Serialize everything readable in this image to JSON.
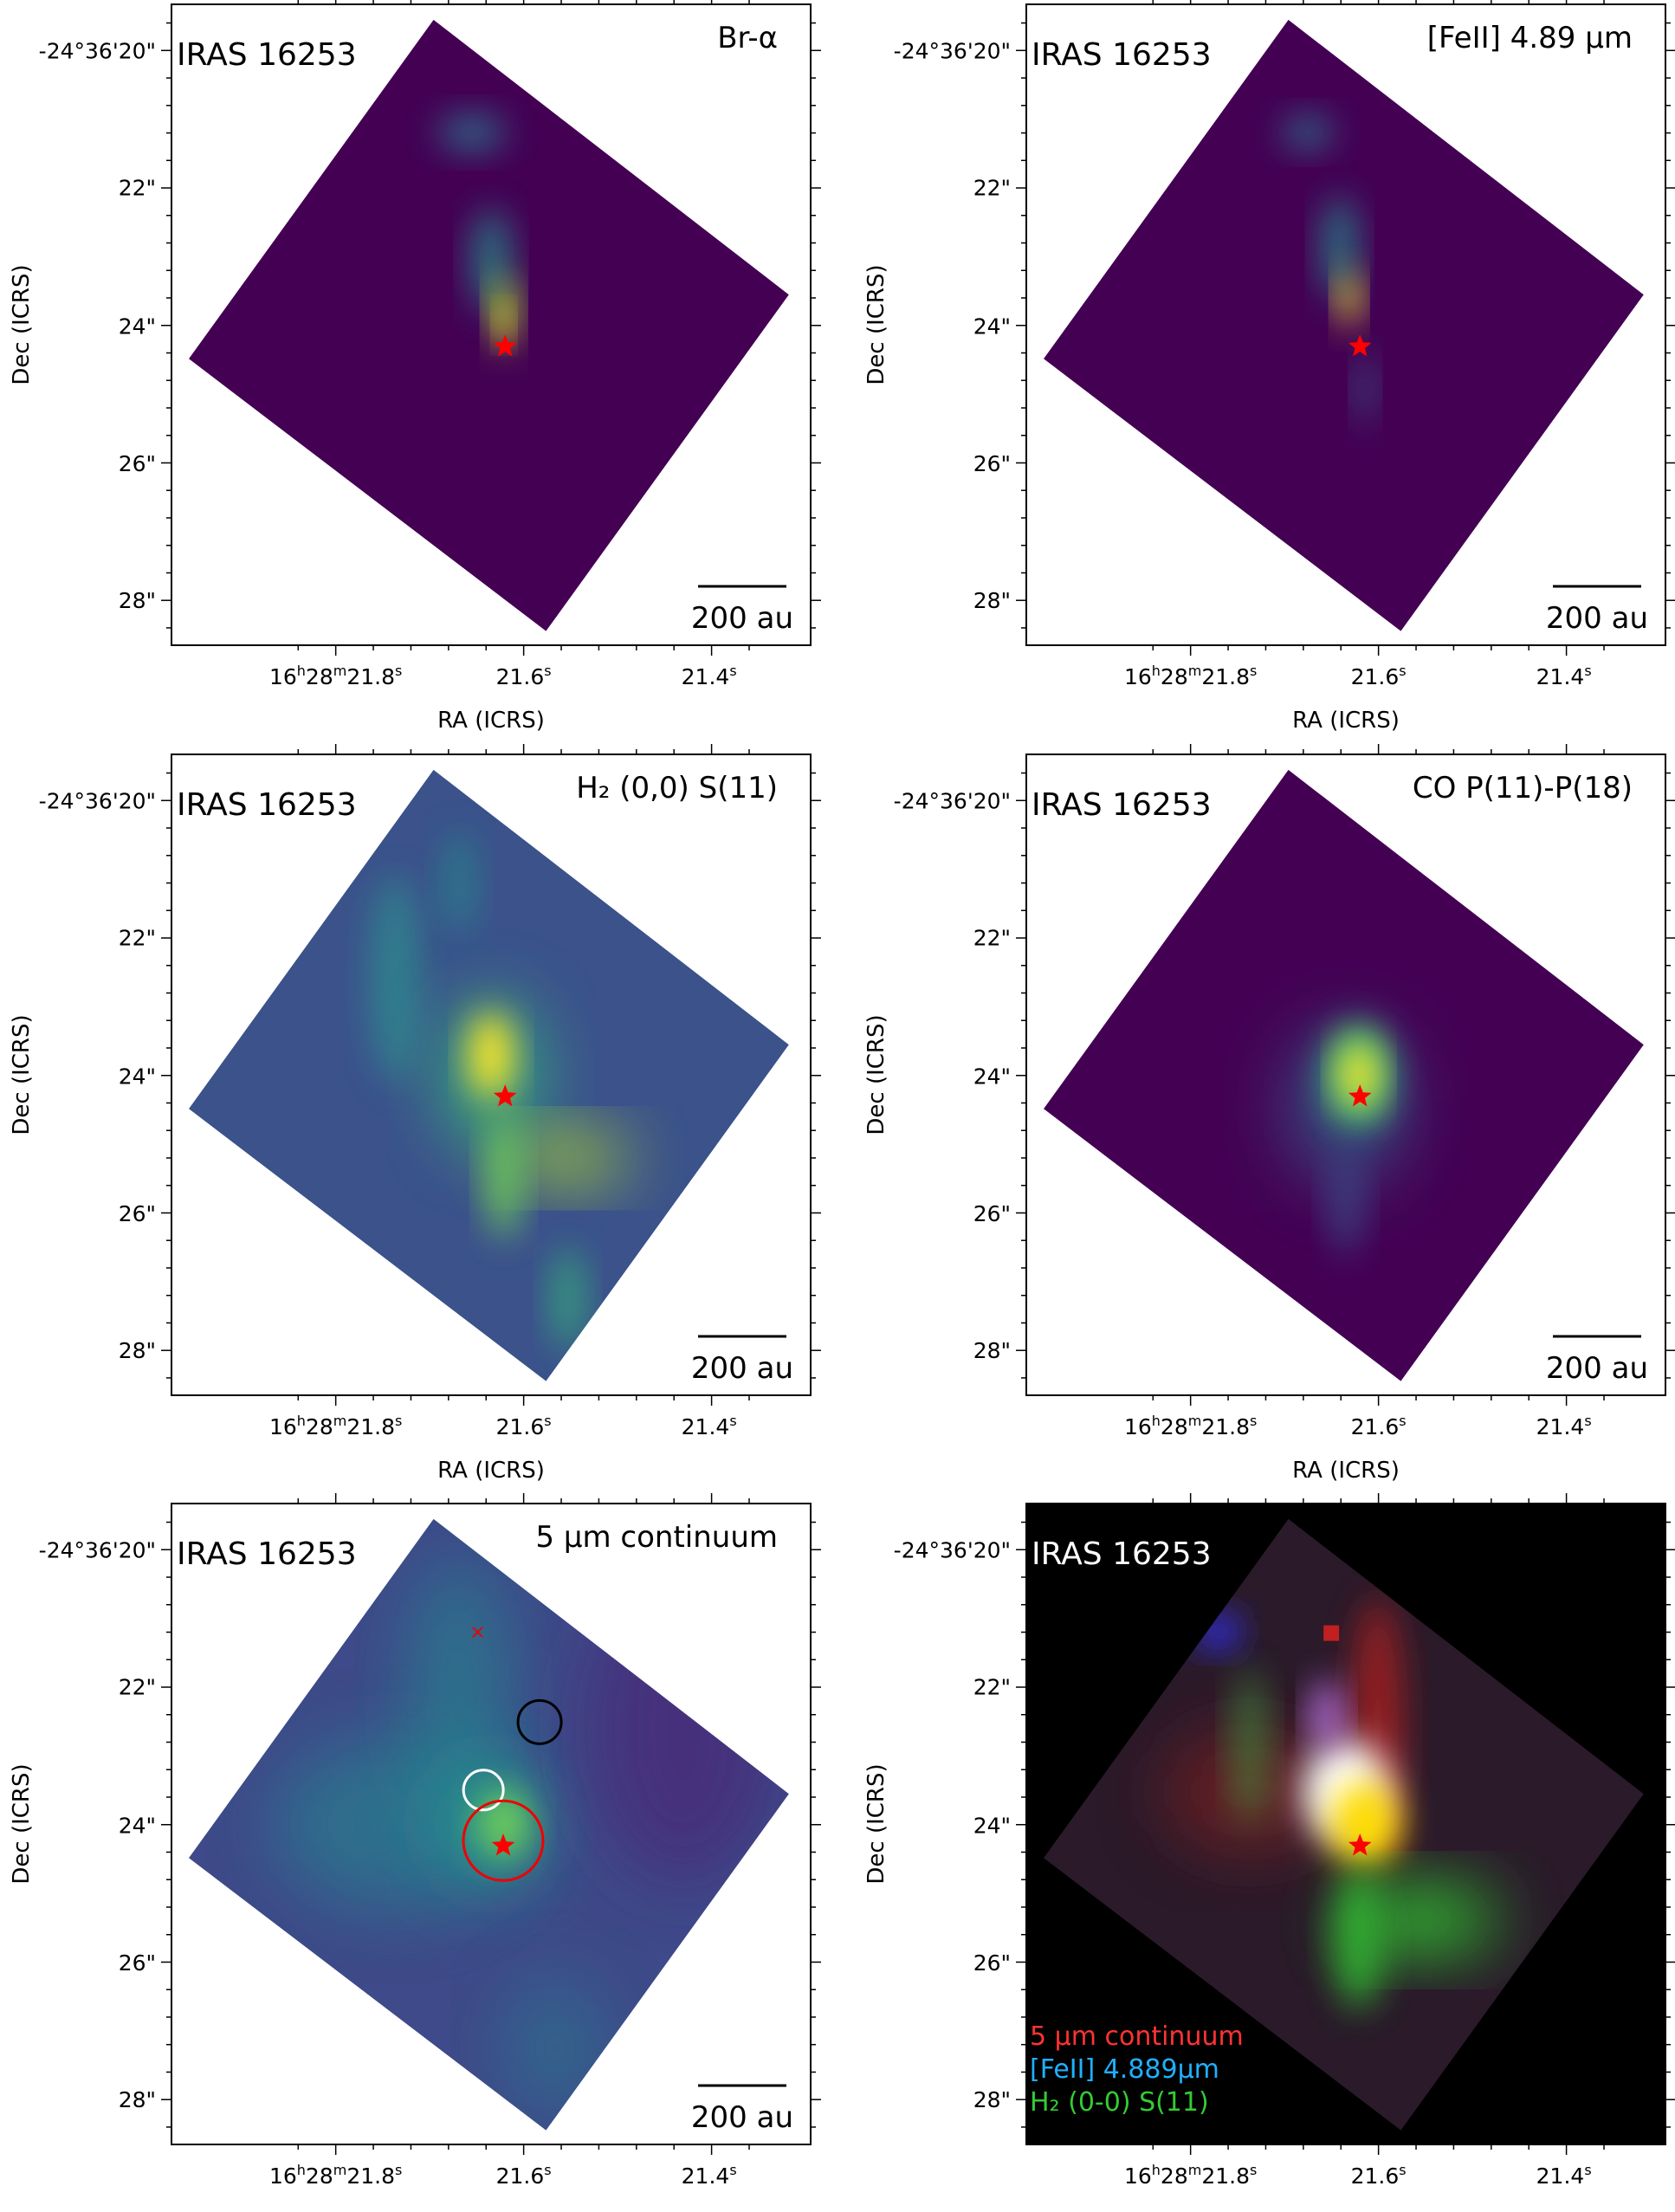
{
  "figure": {
    "object_label": "IRAS 16253",
    "scalebar_label": "200 au",
    "xlabel": "RA (ICRS)",
    "ylabel": "Dec (ICRS)",
    "xticks": [
      "16h28m21.8s",
      "21.6s",
      "21.4s"
    ],
    "xtick_parts": [
      [
        "16",
        "h",
        "28",
        "m",
        "21.8",
        "s"
      ],
      [
        "21.6",
        "s"
      ],
      [
        "21.4",
        "s"
      ]
    ],
    "yticks": [
      "-24°36'20\"",
      "22\"",
      "24\"",
      "26\"",
      "28\""
    ],
    "star_color": "#ff0000"
  },
  "panels": [
    {
      "title": "Br-α",
      "style": "bra"
    },
    {
      "title": "[FeII] 4.89 μm",
      "style": "fe"
    },
    {
      "title": "H₂ (0,0) S(11)",
      "style": "h2"
    },
    {
      "title": "CO P(11)-P(18)",
      "style": "co"
    },
    {
      "title": "5 μm continuum",
      "style": "cont",
      "markers": [
        "red-cross",
        "black-circle",
        "white-circle",
        "red-circle"
      ]
    },
    {
      "title": "",
      "style": "rgb",
      "legend": [
        {
          "label": "5 μm continuum",
          "color": "#ff3333"
        },
        {
          "label": "[FeII] 4.889μm",
          "color": "#1fb0ff"
        },
        {
          "label": "H₂ (0-0) S(11)",
          "color": "#33cc33"
        }
      ]
    }
  ],
  "colormap": {
    "low": "#440154",
    "mid": "#21918c",
    "high": "#fde725"
  }
}
